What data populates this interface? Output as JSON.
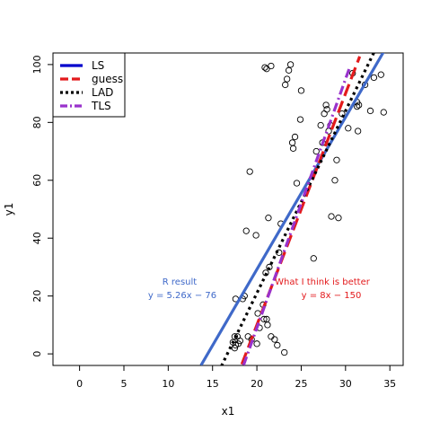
{
  "chart_data": {
    "type": "scatter",
    "title": "",
    "xlabel": "x1",
    "ylabel": "y1",
    "xlim": [
      -3,
      36.5
    ],
    "ylim": [
      -4,
      104
    ],
    "xticks": [
      0,
      5,
      10,
      15,
      20,
      25,
      30,
      35
    ],
    "yticks": [
      0,
      20,
      40,
      60,
      80,
      100
    ],
    "points": [
      [
        17.6,
        19
      ],
      [
        17.5,
        6
      ],
      [
        17.8,
        6
      ],
      [
        17.3,
        4
      ],
      [
        17.6,
        3
      ],
      [
        17.9,
        3.5
      ],
      [
        18.1,
        4.5
      ],
      [
        17.5,
        2
      ],
      [
        18.4,
        19
      ],
      [
        18.6,
        20
      ],
      [
        18.8,
        42.5
      ],
      [
        19.2,
        63
      ],
      [
        19.0,
        6
      ],
      [
        19.4,
        5
      ],
      [
        19.9,
        41
      ],
      [
        20.0,
        3.5
      ],
      [
        20.1,
        14
      ],
      [
        20.3,
        9
      ],
      [
        20.8,
        12
      ],
      [
        20.7,
        17
      ],
      [
        21.0,
        28
      ],
      [
        21.1,
        12
      ],
      [
        21.2,
        10
      ],
      [
        21.3,
        47
      ],
      [
        21.4,
        30
      ],
      [
        21.6,
        6
      ],
      [
        22.0,
        5
      ],
      [
        22.3,
        3
      ],
      [
        22.5,
        35
      ],
      [
        22.7,
        45
      ],
      [
        23.1,
        0.5
      ],
      [
        23.2,
        93
      ],
      [
        23.4,
        95
      ],
      [
        23.6,
        98
      ],
      [
        23.8,
        100
      ],
      [
        24.0,
        73
      ],
      [
        24.1,
        71
      ],
      [
        24.3,
        75
      ],
      [
        24.5,
        59
      ],
      [
        24.9,
        81
      ],
      [
        25.0,
        91
      ],
      [
        20.9,
        99
      ],
      [
        21.1,
        98.5
      ],
      [
        21.6,
        99.5
      ],
      [
        26.4,
        33
      ],
      [
        26.7,
        70
      ],
      [
        27.2,
        79
      ],
      [
        27.4,
        73
      ],
      [
        27.6,
        83
      ],
      [
        27.8,
        86
      ],
      [
        27.9,
        84.5
      ],
      [
        28.1,
        77
      ],
      [
        28.3,
        79
      ],
      [
        28.4,
        47.5
      ],
      [
        28.8,
        60
      ],
      [
        29.0,
        67
      ],
      [
        29.2,
        47
      ],
      [
        29.6,
        83
      ],
      [
        30.3,
        78
      ],
      [
        30.8,
        97
      ],
      [
        31.3,
        87
      ],
      [
        31.3,
        85.5
      ],
      [
        31.4,
        77
      ],
      [
        31.5,
        86
      ],
      [
        32.2,
        93
      ],
      [
        32.8,
        84
      ],
      [
        33.2,
        95.5
      ],
      [
        34.0,
        96.5
      ],
      [
        34.3,
        83.5
      ]
    ],
    "lines": [
      {
        "name": "LS",
        "slope": 5.26,
        "intercept": -76,
        "x_from": 13.7,
        "x_to": 34.6,
        "color": "#3f69c9",
        "dash": "solid"
      },
      {
        "name": "guess",
        "slope": 8,
        "intercept": -150,
        "x_from": 18.3,
        "x_to": 31.6,
        "color": "#e31a1c",
        "dash": "long-dash"
      },
      {
        "name": "LAD",
        "slope": 6.3,
        "intercept": -105,
        "x_from": 16.0,
        "x_to": 33.6,
        "color": "#000000",
        "dash": "dotted"
      },
      {
        "name": "TLS",
        "slope": 8.6,
        "intercept": -163,
        "x_from": 18.5,
        "x_to": 30.5,
        "color": "#9932cc",
        "dash": "dash-dot"
      }
    ],
    "legend": {
      "position": "top-left",
      "entries": [
        {
          "label": "LS",
          "color": "#0000cc",
          "dash": "solid"
        },
        {
          "label": "guess",
          "color": "#e31a1c",
          "dash": "long-dash"
        },
        {
          "label": "LAD",
          "color": "#000000",
          "dash": "dotted"
        },
        {
          "label": "TLS",
          "color": "#9932cc",
          "dash": "dash-dot"
        }
      ]
    },
    "annotations": [
      {
        "id": "r-result-title",
        "text": "R result",
        "color": "#3f69c9"
      },
      {
        "id": "r-result-eq",
        "text": "y = 5.26x − 76",
        "color": "#3f69c9"
      },
      {
        "id": "better-title",
        "text": "What I think is better",
        "color": "#e31a1c"
      },
      {
        "id": "better-eq",
        "text": "y = 8x − 150",
        "color": "#e31a1c"
      }
    ],
    "grid": false
  }
}
